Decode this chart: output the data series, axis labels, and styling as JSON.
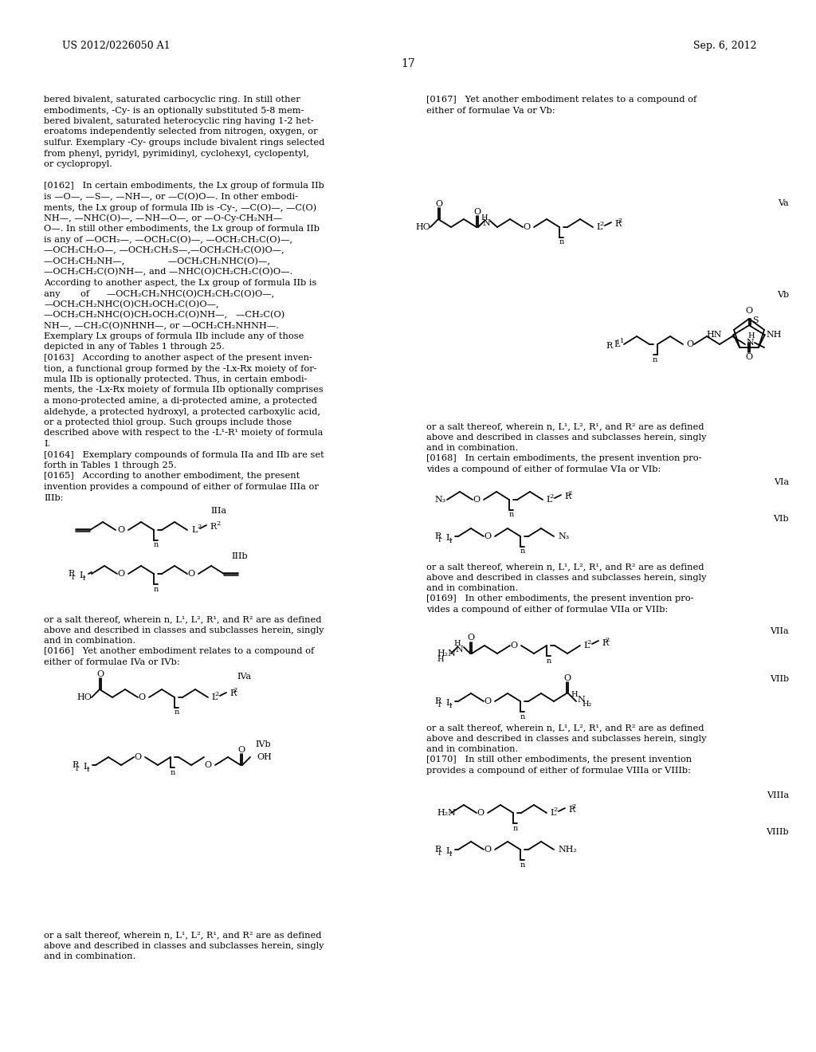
{
  "patent_number": "US 2012/0226050 A1",
  "patent_date": "Sep. 6, 2012",
  "page_number": "17",
  "bg_color": "#ffffff",
  "text_color": "#000000"
}
